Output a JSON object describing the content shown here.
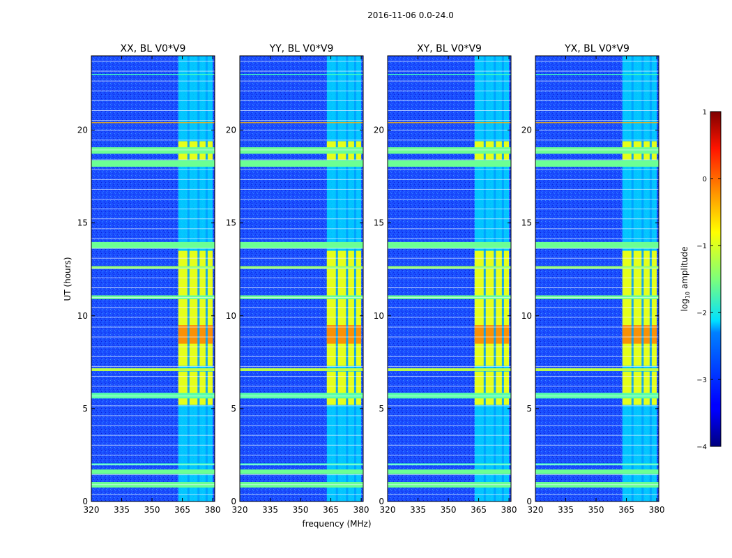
{
  "figure": {
    "suptitle": "2016-11-06 0.0-24.0",
    "xlabel": "frequency (MHz)",
    "ylabel": "UT (hours)"
  },
  "chart_data": {
    "type": "heatmap",
    "title": "2016-11-06 0.0-24.0",
    "xlabel": "frequency (MHz)",
    "ylabel": "UT (hours)",
    "xlim": [
      320,
      381
    ],
    "ylim": [
      0,
      24
    ],
    "x_ticks": [
      320,
      335,
      350,
      365,
      380
    ],
    "y_ticks": [
      0,
      5,
      10,
      15,
      20
    ],
    "panels": [
      {
        "name": "XX",
        "title": "XX, BL V0*V9"
      },
      {
        "name": "YY",
        "title": "YY, BL V0*V9"
      },
      {
        "name": "XY",
        "title": "XY, BL V0*V9"
      },
      {
        "name": "YX",
        "title": "YX, BL V0*V9"
      }
    ],
    "colorbar": {
      "label": "log10 amplitude",
      "label_main": "log",
      "label_sub": "10",
      "label_rest": " amplitude",
      "min": -4,
      "max": 1,
      "ticks": [
        -4,
        -3,
        -2,
        -1,
        0,
        1
      ],
      "colormap": "jet"
    },
    "background_level": -3.3,
    "rfi_columns": {
      "freq_start": 363,
      "freq_end": 380,
      "gaps_mhz": [
        368,
        373,
        377
      ],
      "level_day": -1.0,
      "level_peak": -0.2,
      "peak_hours": [
        8.5,
        9.5
      ]
    },
    "horizontal_flags": [
      {
        "hour": 0.9,
        "width": 0.3,
        "level": -1.6
      },
      {
        "hour": 1.6,
        "width": 0.25,
        "level": -1.6
      },
      {
        "hour": 2.0,
        "width": 0.1,
        "level": -1.8
      },
      {
        "hour": 5.7,
        "width": 0.3,
        "level": -1.7
      },
      {
        "hour": 7.1,
        "width": 0.15,
        "level": -1.2
      },
      {
        "hour": 11.0,
        "width": 0.2,
        "level": -1.6
      },
      {
        "hour": 12.6,
        "width": 0.15,
        "level": -1.4
      },
      {
        "hour": 13.8,
        "width": 0.35,
        "level": -1.6
      },
      {
        "hour": 18.2,
        "width": 0.35,
        "level": -1.6
      },
      {
        "hour": 18.9,
        "width": 0.35,
        "level": -1.6
      },
      {
        "hour": 20.4,
        "width": 0.05,
        "level": -0.5
      },
      {
        "hour": 23.0,
        "width": 0.05,
        "level": -1.8
      }
    ]
  }
}
